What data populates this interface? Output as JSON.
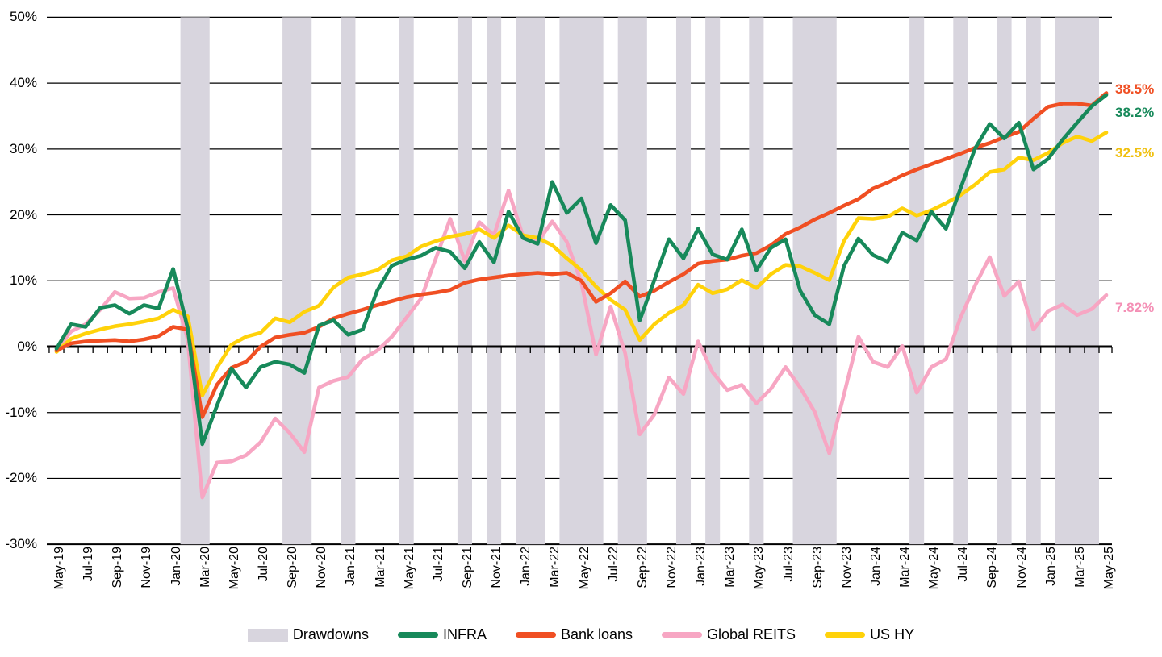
{
  "chart_data": {
    "type": "line",
    "title": "",
    "ylabel": "",
    "xlabel": "",
    "ylim": [
      -30,
      50
    ],
    "grid": "horizontal",
    "y_tick_labels": [
      "50%",
      "40%",
      "30%",
      "20%",
      "10%",
      "0%",
      "-10%",
      "-20%",
      "-30%"
    ],
    "y_tick_values": [
      50,
      40,
      30,
      20,
      10,
      0,
      -10,
      -20,
      -30
    ],
    "x_tick_labels": [
      "May-19",
      "Jul-19",
      "Sep-19",
      "Nov-19",
      "Jan-20",
      "Mar-20",
      "May-20",
      "Jul-20",
      "Sep-20",
      "Nov-20",
      "Jan-21",
      "Mar-21",
      "May-21",
      "Jul-21",
      "Sep-21",
      "Nov-21",
      "Jan-22",
      "Mar-22",
      "May-22",
      "Jul-22",
      "Sep-22",
      "Nov-22",
      "Jan-23",
      "Mar-23",
      "May-23",
      "Jul-23",
      "Sep-23",
      "Nov-23",
      "Jan-24",
      "Mar-24",
      "May-24",
      "Jul-24",
      "Sep-24",
      "Nov-24",
      "Jan-25",
      "Mar-25",
      "May-25"
    ],
    "months": [
      "May-19",
      "Jun-19",
      "Jul-19",
      "Aug-19",
      "Sep-19",
      "Oct-19",
      "Nov-19",
      "Dec-19",
      "Jan-20",
      "Feb-20",
      "Mar-20",
      "Apr-20",
      "May-20",
      "Jun-20",
      "Jul-20",
      "Aug-20",
      "Sep-20",
      "Oct-20",
      "Nov-20",
      "Dec-20",
      "Jan-21",
      "Feb-21",
      "Mar-21",
      "Apr-21",
      "May-21",
      "Jun-21",
      "Jul-21",
      "Aug-21",
      "Sep-21",
      "Oct-21",
      "Nov-21",
      "Dec-21",
      "Jan-22",
      "Feb-22",
      "Mar-22",
      "Apr-22",
      "May-22",
      "Jun-22",
      "Jul-22",
      "Aug-22",
      "Sep-22",
      "Oct-22",
      "Nov-22",
      "Dec-22",
      "Jan-23",
      "Feb-23",
      "Mar-23",
      "Apr-23",
      "May-23",
      "Jun-23",
      "Jul-23",
      "Aug-23",
      "Sep-23",
      "Oct-23",
      "Nov-23",
      "Dec-23",
      "Jan-24",
      "Feb-24",
      "Mar-24",
      "Apr-24",
      "May-24",
      "Jun-24",
      "Jul-24",
      "Aug-24",
      "Sep-24",
      "Oct-24",
      "Nov-24",
      "Dec-24",
      "Jan-25",
      "Feb-25",
      "Mar-25",
      "Apr-25",
      "May-25"
    ],
    "series": [
      {
        "name": "INFRA",
        "color": "#17895A",
        "end_label": "38.2%",
        "end_label_color": "#17895A",
        "values": [
          -0.3,
          3.4,
          3.0,
          5.9,
          6.3,
          5.0,
          6.3,
          5.8,
          11.8,
          2.8,
          -14.8,
          -9.0,
          -3.3,
          -6.2,
          -3.1,
          -2.3,
          -2.7,
          -4.0,
          3.2,
          4.0,
          1.8,
          2.6,
          8.5,
          12.3,
          13.2,
          13.8,
          15.0,
          14.4,
          11.9,
          15.9,
          12.8,
          20.5,
          16.5,
          15.6,
          25.0,
          20.3,
          22.5,
          15.7,
          21.5,
          19.2,
          4.0,
          10.1,
          16.3,
          13.4,
          17.9,
          14.0,
          13.2,
          17.8,
          11.6,
          15.0,
          16.3,
          8.5,
          4.8,
          3.4,
          12.2,
          16.4,
          13.9,
          12.9,
          17.3,
          16.1,
          20.5,
          17.9,
          24.0,
          30.1,
          33.8,
          31.6,
          34.0,
          26.9,
          28.5,
          31.4,
          34.0,
          36.5,
          38.2
        ]
      },
      {
        "name": "Bank loans",
        "color": "#F04F23",
        "end_label": "38.5%",
        "end_label_color": "#F04F23",
        "values": [
          -0.6,
          0.5,
          0.8,
          0.9,
          1.0,
          0.8,
          1.1,
          1.6,
          3.0,
          2.6,
          -10.7,
          -5.8,
          -3.2,
          -2.3,
          0.0,
          1.4,
          1.8,
          2.1,
          3.0,
          4.3,
          5.0,
          5.6,
          6.3,
          6.9,
          7.5,
          7.9,
          8.2,
          8.6,
          9.7,
          10.2,
          10.5,
          10.8,
          11.0,
          11.2,
          11.0,
          11.2,
          10.0,
          6.8,
          8.1,
          9.9,
          7.6,
          8.5,
          9.8,
          11.0,
          12.6,
          13.0,
          13.2,
          13.8,
          14.2,
          15.4,
          17.1,
          18.1,
          19.3,
          20.3,
          21.4,
          22.4,
          24.0,
          24.9,
          26.0,
          26.9,
          27.7,
          28.5,
          29.3,
          30.2,
          30.9,
          31.8,
          32.6,
          34.6,
          36.4,
          36.9,
          36.9,
          36.6,
          38.5
        ]
      },
      {
        "name": "Global REITS",
        "color": "#F7A6C3",
        "end_label": "7.82%",
        "end_label_color": "#F48FB5",
        "values": [
          -0.5,
          2.3,
          3.4,
          5.6,
          8.3,
          7.3,
          7.4,
          8.3,
          8.9,
          1.1,
          -22.9,
          -17.6,
          -17.4,
          -16.5,
          -14.5,
          -10.9,
          -13.1,
          -16.0,
          -6.2,
          -5.2,
          -4.6,
          -1.9,
          -0.6,
          1.5,
          4.4,
          7.3,
          13.3,
          19.4,
          13.0,
          18.9,
          16.9,
          23.7,
          16.7,
          15.9,
          19.0,
          15.9,
          9.7,
          -1.2,
          6.1,
          -1.0,
          -13.3,
          -10.3,
          -4.7,
          -7.2,
          0.8,
          -3.9,
          -6.6,
          -5.8,
          -8.6,
          -6.4,
          -3.1,
          -6.2,
          -9.9,
          -16.2,
          -7.3,
          1.5,
          -2.3,
          -3.1,
          0.1,
          -7.0,
          -3.1,
          -1.9,
          4.4,
          9.3,
          13.6,
          7.7,
          9.9,
          2.6,
          5.4,
          6.4,
          4.8,
          5.7,
          7.82
        ]
      },
      {
        "name": "US HY",
        "color": "#FFD20A",
        "end_label": "32.5%",
        "end_label_color": "#F0C00E",
        "values": [
          -0.8,
          1.2,
          2.0,
          2.6,
          3.1,
          3.4,
          3.8,
          4.3,
          5.6,
          4.6,
          -7.4,
          -3.2,
          0.3,
          1.5,
          2.1,
          4.3,
          3.7,
          5.3,
          6.2,
          9.0,
          10.5,
          11.0,
          11.6,
          13.1,
          13.7,
          15.2,
          16.0,
          16.7,
          17.1,
          17.8,
          16.5,
          18.4,
          16.9,
          16.5,
          15.4,
          13.4,
          11.6,
          9.1,
          7.1,
          5.6,
          1.0,
          3.4,
          5.1,
          6.3,
          9.4,
          8.1,
          8.7,
          10.1,
          8.9,
          11.0,
          12.4,
          12.2,
          11.2,
          10.1,
          16.0,
          19.5,
          19.4,
          19.7,
          21.0,
          19.9,
          20.7,
          21.8,
          23.0,
          24.6,
          26.5,
          26.9,
          28.7,
          28.3,
          29.4,
          30.9,
          31.9,
          31.2,
          32.5
        ]
      }
    ],
    "drawdowns": {
      "label": "Drawdowns",
      "color": "#D8D5DE",
      "bands_month_index": [
        [
          9,
          10
        ],
        [
          16,
          17
        ],
        [
          20,
          20
        ],
        [
          24,
          24
        ],
        [
          28,
          28
        ],
        [
          30,
          30
        ],
        [
          32,
          33
        ],
        [
          35,
          37
        ],
        [
          39,
          40
        ],
        [
          43,
          43
        ],
        [
          45,
          45
        ],
        [
          48,
          48
        ],
        [
          51,
          53
        ],
        [
          59,
          59
        ],
        [
          62,
          62
        ],
        [
          65,
          65
        ],
        [
          67,
          67
        ],
        [
          69,
          71
        ]
      ]
    }
  },
  "legend": {
    "items": [
      {
        "label": "Drawdowns",
        "type": "band"
      },
      {
        "label": "INFRA",
        "type": "line"
      },
      {
        "label": "Bank loans",
        "type": "line"
      },
      {
        "label": "Global REITS",
        "type": "line"
      },
      {
        "label": "US HY",
        "type": "line"
      }
    ]
  },
  "colors": {
    "background": "#FFFFFF",
    "gridline": "#000000",
    "zero_axis": "#000000",
    "text": "#000000"
  }
}
